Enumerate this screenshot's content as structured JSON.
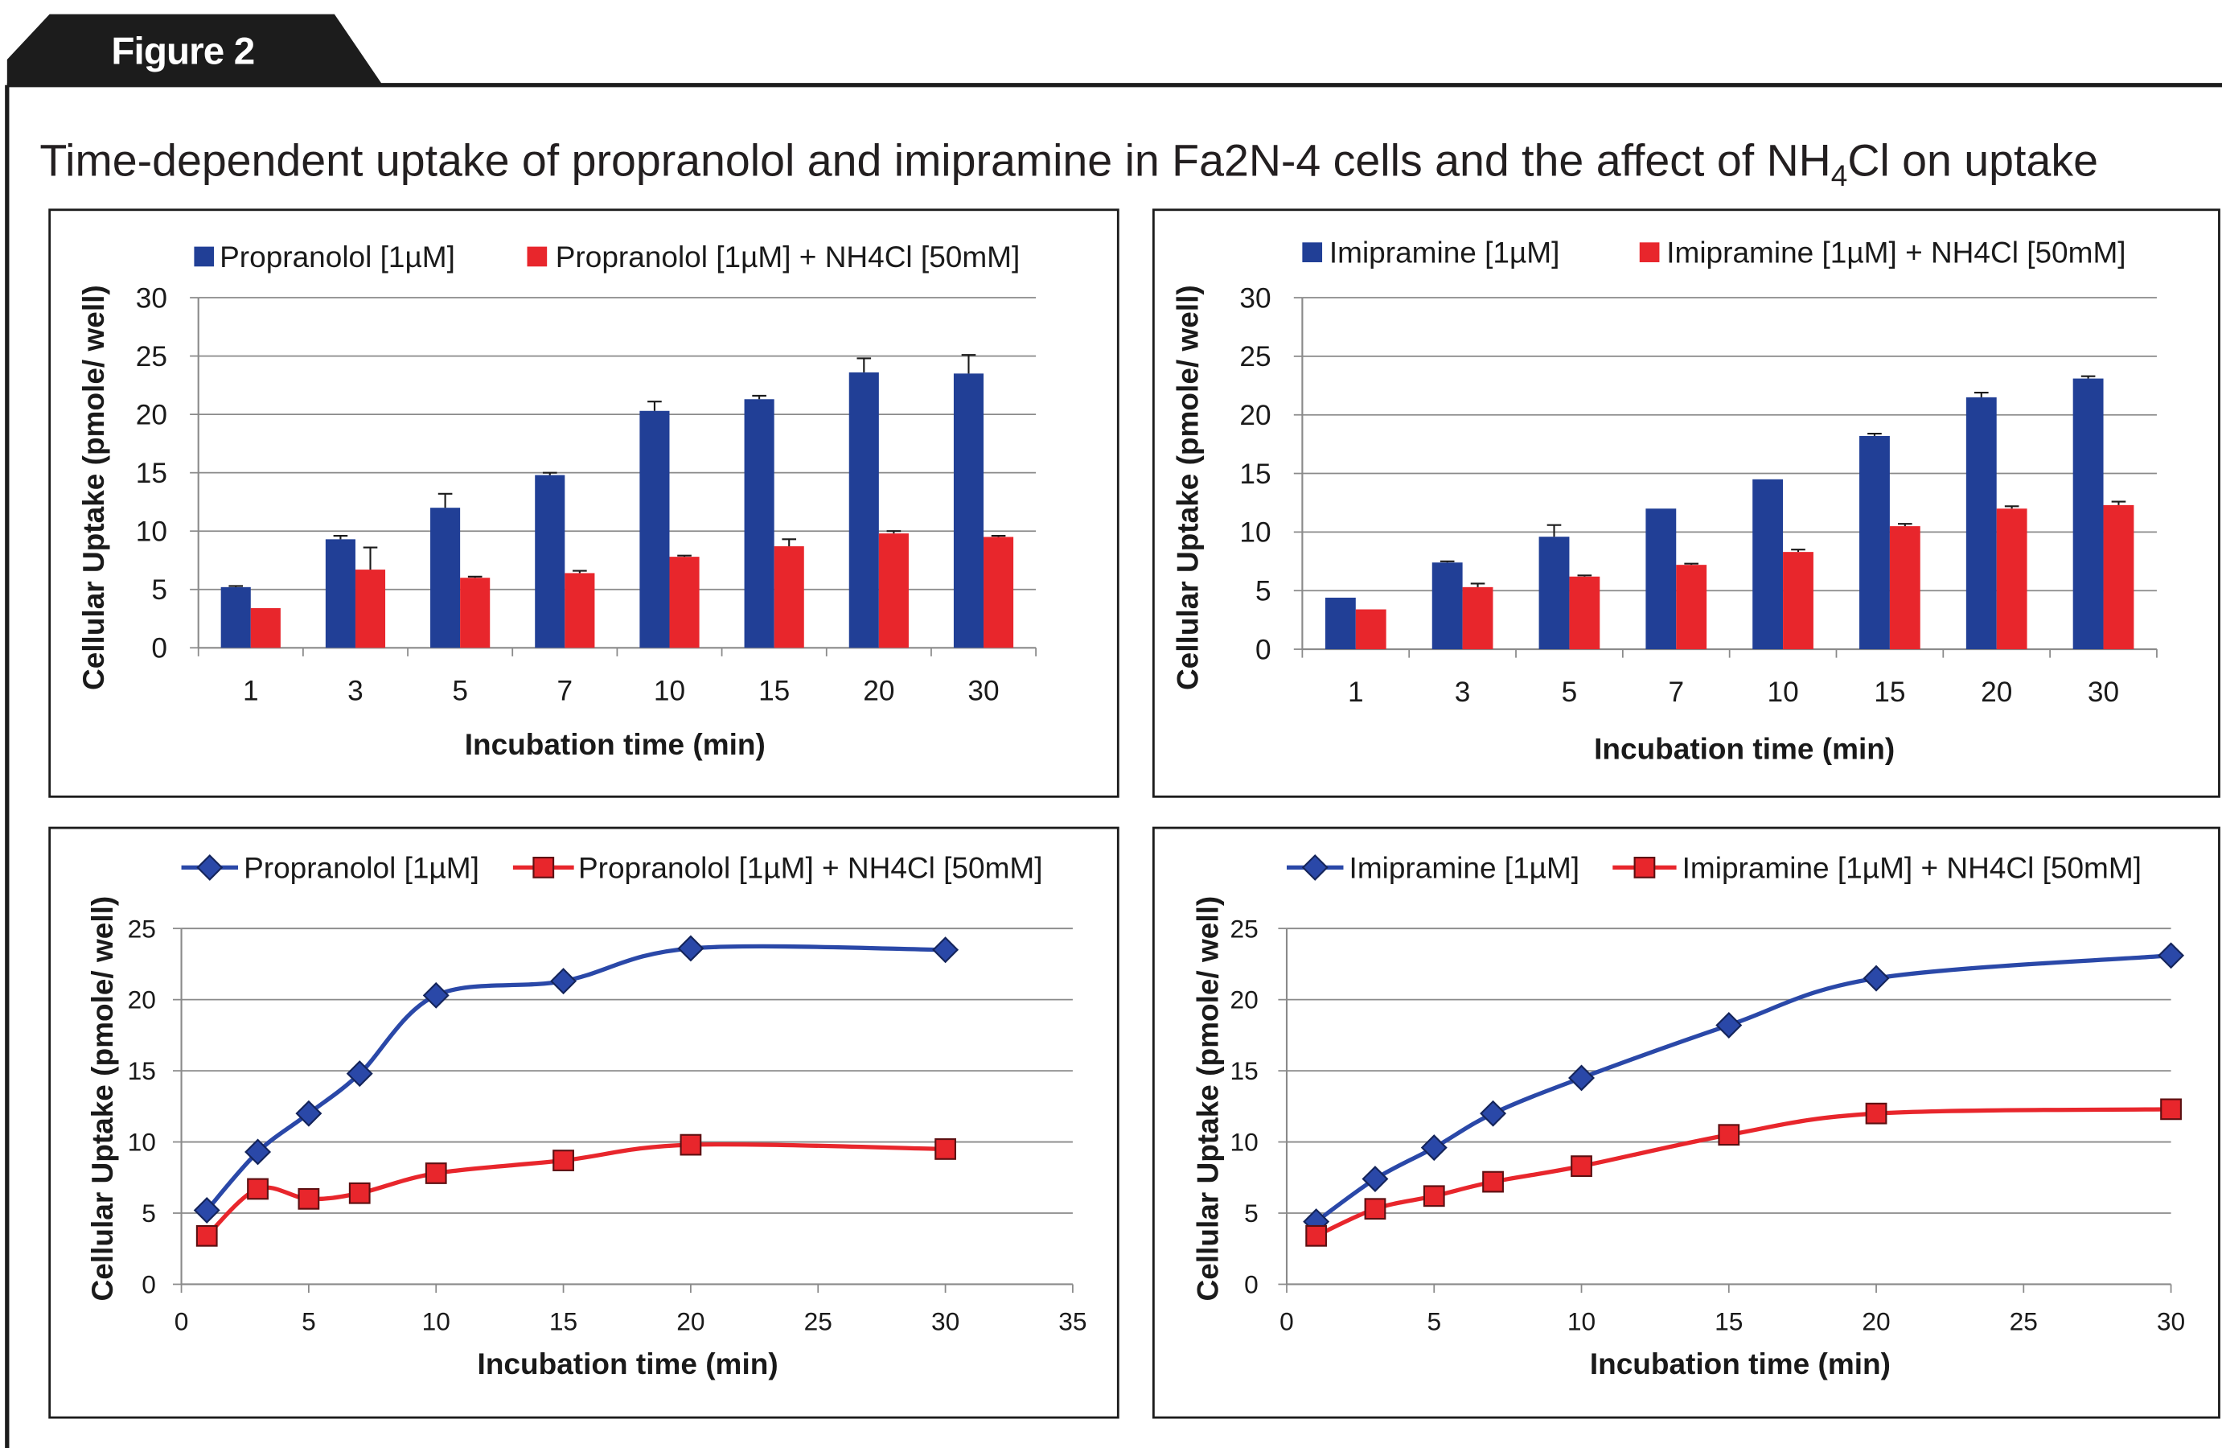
{
  "figure_label": "Figure 2",
  "title": {
    "before": "Time-dependent uptake of propranolol and imipramine in Fa2N-4 cells and the affect of NH",
    "subscript": "4",
    "after": "Cl on uptake"
  },
  "chart_data": [
    {
      "type": "bar",
      "categories": [
        "1",
        "3",
        "5",
        "7",
        "10",
        "15",
        "20",
        "30"
      ],
      "series": [
        {
          "name": "Propranolol [1µM]",
          "color": "#213F96",
          "values": [
            5.2,
            9.3,
            12.0,
            14.8,
            20.3,
            21.3,
            23.6,
            23.5
          ],
          "error": [
            0.1,
            0.3,
            1.2,
            0.2,
            0.8,
            0.3,
            1.2,
            1.6
          ]
        },
        {
          "name": "Propranolol [1µM] + NH4Cl [50mM]",
          "color": "#E8262C",
          "values": [
            3.4,
            6.7,
            6.0,
            6.4,
            7.8,
            8.7,
            9.8,
            9.5
          ],
          "error": [
            0,
            1.9,
            0.1,
            0.2,
            0.1,
            0.6,
            0.2,
            0.1
          ]
        }
      ],
      "xlabel": "Incubation time (min)",
      "ylabel": "Cellular Uptake (pmole/ well)",
      "ylim": [
        0,
        30
      ],
      "yticks": [
        0,
        5,
        10,
        15,
        20,
        25,
        30
      ],
      "error_bars": "plus",
      "grid": true,
      "legend": "top"
    },
    {
      "type": "bar",
      "categories": [
        "1",
        "3",
        "5",
        "7",
        "10",
        "15",
        "20",
        "30"
      ],
      "series": [
        {
          "name": "Imipramine [1µM]",
          "color": "#213F96",
          "values": [
            4.4,
            7.4,
            9.6,
            12.0,
            14.5,
            18.2,
            21.5,
            23.1
          ],
          "error": [
            0,
            0.1,
            1.0,
            0,
            0,
            0.2,
            0.4,
            0.2
          ]
        },
        {
          "name": "Imipramine [1µM] + NH4Cl [50mM]",
          "color": "#E8262C",
          "values": [
            3.4,
            5.3,
            6.2,
            7.2,
            8.3,
            10.5,
            12.0,
            12.3
          ],
          "error": [
            0,
            0.3,
            0.1,
            0.1,
            0.2,
            0.2,
            0.2,
            0.3
          ]
        }
      ],
      "xlabel": "Incubation time (min)",
      "ylabel": "Cellular Uptake (pmole/ well)",
      "ylim": [
        0,
        30
      ],
      "yticks": [
        0,
        5,
        10,
        15,
        20,
        25,
        30
      ],
      "error_bars": "plus",
      "grid": true,
      "legend": "top"
    },
    {
      "type": "line",
      "series": [
        {
          "name": "Propranolol [1µM]",
          "color": "#2A48A8",
          "marker": "diamond",
          "x": [
            1,
            3,
            5,
            7,
            10,
            15,
            20,
            30
          ],
          "y": [
            5.2,
            9.3,
            12.0,
            14.8,
            20.3,
            21.3,
            23.6,
            23.5
          ]
        },
        {
          "name": "Propranolol [1µM] + NH4Cl [50mM]",
          "color": "#E8262C",
          "marker": "square",
          "x": [
            1,
            3,
            5,
            7,
            10,
            15,
            20,
            30
          ],
          "y": [
            3.4,
            6.7,
            6.0,
            6.4,
            7.8,
            8.7,
            9.8,
            9.5
          ]
        }
      ],
      "xlabel": "Incubation time (min)",
      "ylabel": "Cellular Uptake (pmole/ well)",
      "xlim": [
        0,
        35
      ],
      "ylim": [
        0,
        25
      ],
      "xticks": [
        0,
        5,
        10,
        15,
        20,
        25,
        30,
        35
      ],
      "yticks": [
        0,
        5,
        10,
        15,
        20,
        25
      ],
      "smooth": true,
      "grid": true,
      "legend": "top"
    },
    {
      "type": "line",
      "series": [
        {
          "name": "Imipramine [1µM]",
          "color": "#2A48A8",
          "marker": "diamond",
          "x": [
            1,
            3,
            5,
            7,
            10,
            15,
            20,
            30
          ],
          "y": [
            4.4,
            7.4,
            9.6,
            12.0,
            14.5,
            18.2,
            21.5,
            23.1
          ]
        },
        {
          "name": "Imipramine [1µM] + NH4Cl [50mM]",
          "color": "#E8262C",
          "marker": "square",
          "x": [
            1,
            3,
            5,
            7,
            10,
            15,
            20,
            30
          ],
          "y": [
            3.4,
            5.3,
            6.2,
            7.2,
            8.3,
            10.5,
            12.0,
            12.3
          ]
        }
      ],
      "xlabel": "Incubation time (min)",
      "ylabel": "Cellular Uptake (pmole/ well)",
      "xlim": [
        0,
        30
      ],
      "ylim": [
        0,
        25
      ],
      "xticks": [
        0,
        5,
        10,
        15,
        20,
        25,
        30
      ],
      "yticks": [
        0,
        5,
        10,
        15,
        20,
        25
      ],
      "smooth": true,
      "grid": true,
      "legend": "top"
    }
  ]
}
